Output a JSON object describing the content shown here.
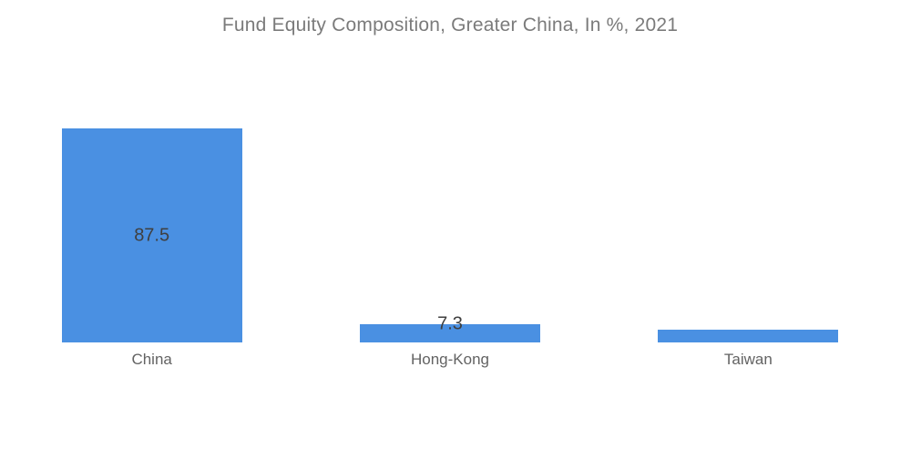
{
  "chart_data": {
    "type": "bar",
    "title": "Fund Equity Composition, Greater China, In %, 2021",
    "categories": [
      "China",
      "Hong-Kong",
      "Taiwan"
    ],
    "values": [
      87.5,
      7.3,
      5.2
    ],
    "data_labels": [
      "87.5",
      "7.3",
      null
    ],
    "xlabel": "",
    "ylabel": "",
    "grid": false,
    "legend": false,
    "axes_visible": false,
    "bar_color": "#4a90e2",
    "title_color": "#7b7b7b",
    "value_label_color": "#3f3f3f",
    "category_label_color": "#636363",
    "background_color": "#ffffff"
  }
}
